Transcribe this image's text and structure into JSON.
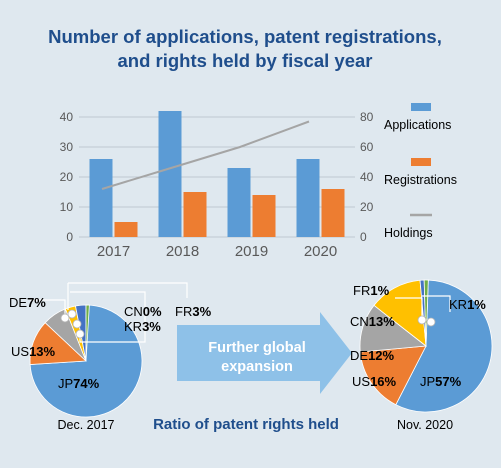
{
  "title_line1": "Number of applications, patent registrations,",
  "title_line2": "and rights held by fiscal year",
  "arrow_text_line1": "Further global",
  "arrow_text_line2": "expansion",
  "ratio_caption": "Ratio of patent rights held",
  "colors": {
    "background": "#dfe8ef",
    "title": "#1f4e8c",
    "applications": "#5b9bd5",
    "registrations": "#ed7d31",
    "holdings": "#a5a5a5",
    "arrow": "#8ec1e8",
    "axis_text": "#595959",
    "gridline": "#bfc9d1"
  },
  "chart_data": [
    {
      "type": "bar",
      "categories": [
        "2017",
        "2018",
        "2019",
        "2020"
      ],
      "series": [
        {
          "name": "Applications",
          "axis": "left",
          "type": "bar",
          "values": [
            26,
            42,
            23,
            26
          ]
        },
        {
          "name": "Registrations",
          "axis": "left",
          "type": "bar",
          "values": [
            5,
            15,
            14,
            16
          ]
        },
        {
          "name": "Holdings",
          "axis": "right",
          "type": "line",
          "values": [
            32,
            46,
            60,
            77
          ]
        }
      ],
      "y_left": {
        "ylim": [
          0,
          40
        ],
        "ticks": [
          0,
          10,
          20,
          30,
          40
        ]
      },
      "y_right": {
        "ylim": [
          0,
          80
        ],
        "ticks": [
          0,
          20,
          40,
          60,
          80
        ]
      },
      "grid": true,
      "legend_position": "right"
    },
    {
      "type": "pie",
      "caption": "Dec. 2017",
      "slices": [
        {
          "country": "JP",
          "pct": "74%",
          "value": 74,
          "color": "#5b9bd5"
        },
        {
          "country": "US",
          "pct": "13%",
          "value": 13,
          "color": "#ed7d31"
        },
        {
          "country": "DE",
          "pct": "7%",
          "value": 7,
          "color": "#a5a5a5"
        },
        {
          "country": "FR",
          "pct": "3%",
          "value": 3,
          "color": "#ffc000"
        },
        {
          "country": "KR",
          "pct": "3%",
          "value": 3,
          "color": "#4472c4"
        },
        {
          "country": "CN",
          "pct": "0%",
          "value": 0,
          "color": "#70ad47"
        }
      ]
    },
    {
      "type": "pie",
      "caption": "Nov. 2020",
      "slices": [
        {
          "country": "JP",
          "pct": "57%",
          "value": 57,
          "color": "#5b9bd5"
        },
        {
          "country": "US",
          "pct": "16%",
          "value": 16,
          "color": "#ed7d31"
        },
        {
          "country": "DE",
          "pct": "12%",
          "value": 12,
          "color": "#a5a5a5"
        },
        {
          "country": "CN",
          "pct": "13%",
          "value": 13,
          "color": "#ffc000"
        },
        {
          "country": "FR",
          "pct": "1%",
          "value": 1,
          "color": "#4472c4"
        },
        {
          "country": "KR",
          "pct": "1%",
          "value": 1,
          "color": "#70ad47"
        }
      ]
    }
  ]
}
